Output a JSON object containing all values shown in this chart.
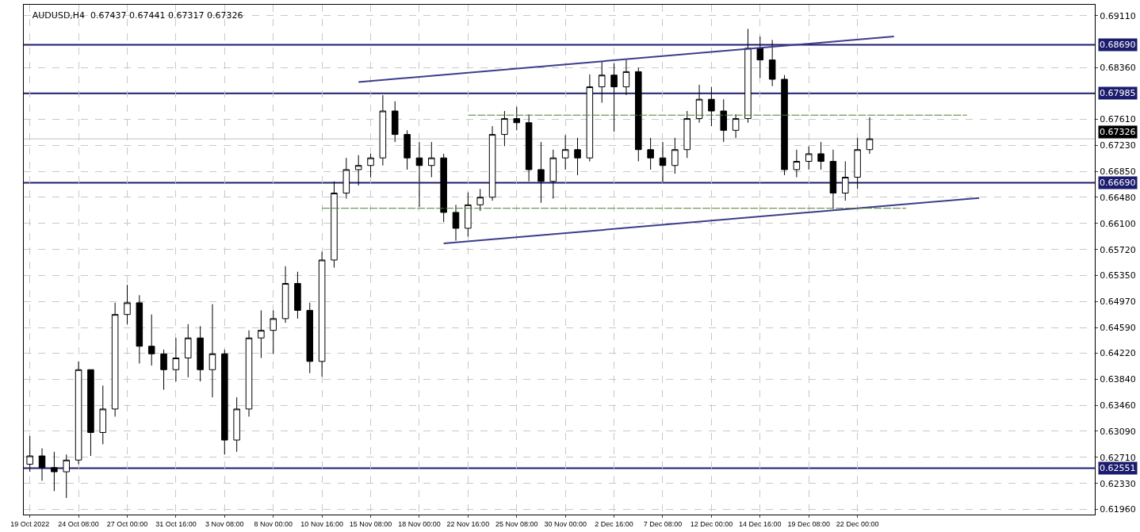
{
  "chart_data": {
    "type": "candlestick",
    "title": "AUDUSD,H4  0.67437 0.67441 0.67317 0.67326",
    "categories": [
      "19 Oct 2022",
      null,
      null,
      null,
      "24 Oct 08:00",
      null,
      null,
      null,
      "27 Oct 00:00",
      null,
      null,
      null,
      "31 Oct 16:00",
      null,
      null,
      null,
      "3 Nov 08:00",
      null,
      null,
      null,
      "8 Nov 00:00",
      null,
      null,
      null,
      "10 Nov 16:00",
      null,
      null,
      null,
      "15 Nov 08:00",
      null,
      null,
      null,
      "18 Nov 00:00",
      null,
      null,
      null,
      "22 Nov 16:00",
      null,
      null,
      null,
      "25 Nov 08:00",
      null,
      null,
      null,
      "30 Nov 00:00",
      null,
      null,
      null,
      "2 Dec 16:00",
      null,
      null,
      null,
      "7 Dec 08:00",
      null,
      null,
      null,
      "12 Dec 00:00",
      null,
      null,
      null,
      "14 Dec 16:00",
      null,
      null,
      null,
      "19 Dec 08:00",
      null,
      null,
      null,
      "22 Dec 00:00",
      null,
      null,
      null,
      null,
      null,
      null,
      null,
      null,
      null,
      null,
      null,
      null,
      null,
      null,
      null,
      null,
      null,
      null,
      null
    ],
    "color": "#000000",
    "ohlc": [
      [
        0.6261,
        0.6302,
        0.625,
        0.6273
      ],
      [
        0.6273,
        0.6284,
        0.6237,
        0.6256
      ],
      [
        0.6256,
        0.6279,
        0.6222,
        0.625
      ],
      [
        0.625,
        0.6275,
        0.6212,
        0.6267
      ],
      [
        0.6267,
        0.641,
        0.6261,
        0.6398
      ],
      [
        0.6398,
        0.6398,
        0.6273,
        0.6307
      ],
      [
        0.6307,
        0.6375,
        0.629,
        0.6341
      ],
      [
        0.6341,
        0.6495,
        0.633,
        0.6478
      ],
      [
        0.6478,
        0.6521,
        0.6464,
        0.6495
      ],
      [
        0.6495,
        0.6506,
        0.6407,
        0.6432
      ],
      [
        0.6432,
        0.6478,
        0.6404,
        0.6421
      ],
      [
        0.6421,
        0.6427,
        0.6369,
        0.6398
      ],
      [
        0.6398,
        0.6444,
        0.6381,
        0.6415
      ],
      [
        0.6415,
        0.6464,
        0.6387,
        0.6444
      ],
      [
        0.6444,
        0.6461,
        0.6381,
        0.6398
      ],
      [
        0.6398,
        0.6493,
        0.6358,
        0.6421
      ],
      [
        0.6421,
        0.6427,
        0.6275,
        0.6296
      ],
      [
        0.6296,
        0.6358,
        0.6279,
        0.6341
      ],
      [
        0.6341,
        0.6455,
        0.633,
        0.6444
      ],
      [
        0.6444,
        0.6484,
        0.6415,
        0.6455
      ],
      [
        0.6455,
        0.6484,
        0.6421,
        0.6472
      ],
      [
        0.6472,
        0.6548,
        0.6466,
        0.6523
      ],
      [
        0.6523,
        0.654,
        0.6472,
        0.6484
      ],
      [
        0.6484,
        0.6495,
        0.6393,
        0.641
      ],
      [
        0.641,
        0.6569,
        0.6388,
        0.6557
      ],
      [
        0.6557,
        0.6671,
        0.6546,
        0.6654
      ],
      [
        0.6654,
        0.6705,
        0.6646,
        0.6688
      ],
      [
        0.6688,
        0.6709,
        0.6665,
        0.6694
      ],
      [
        0.6694,
        0.6711,
        0.6677,
        0.6705
      ],
      [
        0.6705,
        0.6796,
        0.6694,
        0.6773
      ],
      [
        0.6773,
        0.6787,
        0.6728,
        0.6739
      ],
      [
        0.6739,
        0.6745,
        0.6688,
        0.6705
      ],
      [
        0.6705,
        0.6728,
        0.6634,
        0.6694
      ],
      [
        0.6694,
        0.6728,
        0.6677,
        0.6705
      ],
      [
        0.6705,
        0.6711,
        0.6612,
        0.6626
      ],
      [
        0.6626,
        0.6637,
        0.6585,
        0.6603
      ],
      [
        0.6603,
        0.6655,
        0.6591,
        0.6637
      ],
      [
        0.6637,
        0.666,
        0.6628,
        0.6648
      ],
      [
        0.6648,
        0.6751,
        0.6643,
        0.6739
      ],
      [
        0.6739,
        0.6773,
        0.6722,
        0.6762
      ],
      [
        0.6762,
        0.6779,
        0.6745,
        0.6756
      ],
      [
        0.6756,
        0.6768,
        0.6671,
        0.6688
      ],
      [
        0.6688,
        0.6728,
        0.664,
        0.6671
      ],
      [
        0.6671,
        0.6717,
        0.6646,
        0.6705
      ],
      [
        0.6705,
        0.6738,
        0.6688,
        0.6717
      ],
      [
        0.6717,
        0.6734,
        0.668,
        0.6705
      ],
      [
        0.6705,
        0.6826,
        0.67,
        0.6808
      ],
      [
        0.6808,
        0.6845,
        0.6785,
        0.6825
      ],
      [
        0.6825,
        0.6842,
        0.6743,
        0.6808
      ],
      [
        0.6808,
        0.6847,
        0.6796,
        0.683
      ],
      [
        0.683,
        0.6836,
        0.67,
        0.6717
      ],
      [
        0.6717,
        0.6734,
        0.6688,
        0.6705
      ],
      [
        0.6705,
        0.6728,
        0.667,
        0.6694
      ],
      [
        0.6694,
        0.6734,
        0.6682,
        0.6717
      ],
      [
        0.6717,
        0.6773,
        0.6705,
        0.6762
      ],
      [
        0.6762,
        0.6811,
        0.6756,
        0.679
      ],
      [
        0.679,
        0.6808,
        0.6751,
        0.6773
      ],
      [
        0.6773,
        0.679,
        0.6728,
        0.6745
      ],
      [
        0.6745,
        0.6768,
        0.6734,
        0.6762
      ],
      [
        0.6762,
        0.6892,
        0.6756,
        0.6864
      ],
      [
        0.6864,
        0.6881,
        0.6821,
        0.6847
      ],
      [
        0.6847,
        0.6876,
        0.6809,
        0.6819
      ],
      [
        0.6819,
        0.6825,
        0.668,
        0.6688
      ],
      [
        0.6688,
        0.6717,
        0.6677,
        0.67
      ],
      [
        0.67,
        0.6722,
        0.6688,
        0.6711
      ],
      [
        0.6711,
        0.6728,
        0.6688,
        0.67
      ],
      [
        0.67,
        0.6717,
        0.6631,
        0.6654
      ],
      [
        0.6654,
        0.67,
        0.6643,
        0.6677
      ],
      [
        0.6677,
        0.6734,
        0.666,
        0.6717
      ],
      [
        0.6717,
        0.6764,
        0.6711,
        0.67326
      ],
      null,
      null,
      null,
      null,
      null,
      null,
      null,
      null,
      null,
      null,
      null,
      null,
      null,
      null,
      null,
      null,
      null,
      null
    ],
    "series": [
      {
        "type": "line",
        "color": "#3c3c8c",
        "line_style": "solid",
        "values": [
          null,
          null,
          null,
          null,
          null,
          null,
          null,
          null,
          null,
          null,
          null,
          null,
          null,
          null,
          null,
          null,
          null,
          null,
          null,
          null,
          null,
          null,
          null,
          null,
          null,
          null,
          null,
          0.6815,
          null,
          null,
          null,
          null,
          null,
          null,
          null,
          null,
          null,
          null,
          null,
          null,
          null,
          null,
          null,
          null,
          null,
          null,
          null,
          null,
          null,
          null,
          null,
          null,
          null,
          null,
          null,
          null,
          null,
          null,
          null,
          null,
          null,
          null,
          null,
          null,
          null,
          null,
          null,
          null,
          null,
          null,
          null,
          0.6881,
          null,
          null,
          null,
          null,
          null,
          null,
          null,
          null,
          null,
          null,
          null,
          null,
          null,
          null,
          null,
          null
        ]
      },
      {
        "type": "line",
        "color": "#3c3c8c",
        "line_style": "solid",
        "values": [
          null,
          null,
          null,
          null,
          null,
          null,
          null,
          null,
          null,
          null,
          null,
          null,
          null,
          null,
          null,
          null,
          null,
          null,
          null,
          null,
          null,
          null,
          null,
          null,
          null,
          null,
          null,
          null,
          null,
          null,
          null,
          null,
          null,
          null,
          0.6581,
          null,
          null,
          null,
          null,
          null,
          null,
          null,
          null,
          null,
          null,
          null,
          null,
          null,
          null,
          null,
          null,
          null,
          null,
          null,
          null,
          null,
          null,
          null,
          null,
          null,
          null,
          null,
          null,
          null,
          null,
          null,
          null,
          null,
          null,
          null,
          null,
          null,
          null,
          null,
          null,
          null,
          null,
          null,
          0.6647,
          null,
          null,
          null,
          null,
          null,
          null,
          null,
          null,
          null
        ]
      },
      {
        "type": "line",
        "color": "#4f7f2f",
        "line_style": "dashed",
        "values": [
          null,
          null,
          null,
          null,
          null,
          null,
          null,
          null,
          null,
          null,
          null,
          null,
          null,
          null,
          null,
          null,
          null,
          null,
          null,
          null,
          null,
          null,
          null,
          null,
          null,
          null,
          null,
          null,
          null,
          null,
          null,
          null,
          null,
          null,
          null,
          null,
          0.6767,
          null,
          null,
          null,
          null,
          null,
          null,
          null,
          null,
          null,
          null,
          null,
          null,
          null,
          null,
          null,
          null,
          null,
          null,
          null,
          null,
          null,
          null,
          null,
          null,
          null,
          null,
          null,
          null,
          null,
          null,
          null,
          null,
          null,
          null,
          null,
          null,
          null,
          null,
          null,
          null,
          0.6767,
          null,
          null,
          null,
          null,
          null,
          null,
          null,
          null,
          null,
          null
        ]
      },
      {
        "type": "line",
        "color": "#4f7f2f",
        "line_style": "dashed",
        "values": [
          null,
          null,
          null,
          null,
          null,
          null,
          null,
          null,
          null,
          null,
          null,
          null,
          null,
          null,
          null,
          null,
          null,
          null,
          null,
          null,
          null,
          null,
          null,
          null,
          0.6632,
          null,
          null,
          null,
          null,
          null,
          null,
          null,
          null,
          null,
          null,
          null,
          null,
          null,
          null,
          null,
          null,
          null,
          null,
          null,
          null,
          null,
          null,
          null,
          null,
          null,
          null,
          null,
          null,
          null,
          null,
          null,
          null,
          null,
          null,
          null,
          null,
          null,
          null,
          null,
          null,
          null,
          null,
          null,
          null,
          null,
          null,
          null,
          0.6632,
          null,
          null,
          null,
          null,
          null,
          null,
          null,
          null,
          null,
          null,
          null,
          null,
          null,
          null,
          null
        ]
      }
    ],
    "ref_lines": [
      {
        "axis": "y",
        "value": 0.6869,
        "label": "0.68690",
        "color": "#1c1c6e"
      },
      {
        "axis": "y",
        "value": 0.67985,
        "label": "0.67985",
        "color": "#1c1c6e"
      },
      {
        "axis": "y",
        "value": 0.6669,
        "label": "0.66690",
        "color": "#1c1c6e"
      },
      {
        "axis": "y",
        "value": 0.62551,
        "label": "0.62551",
        "color": "#1c1c6e"
      },
      {
        "axis": "y",
        "value": 0.67326,
        "label": "0.67326",
        "color": "#c0c0c0"
      }
    ],
    "ylim": [
      0.6188,
      0.6927
    ],
    "yticks": [
      {
        "value": 0.6911,
        "label": "0.69110"
      },
      {
        "value": 0.6836,
        "label": "0.68360"
      },
      {
        "value": 0.6761,
        "label": "0.67610"
      },
      {
        "value": 0.6723,
        "label": "0.67230"
      },
      {
        "value": 0.6685,
        "label": "0.66850"
      },
      {
        "value": 0.6648,
        "label": "0.66480"
      },
      {
        "value": 0.661,
        "label": "0.66100"
      },
      {
        "value": 0.6572,
        "label": "0.65720"
      },
      {
        "value": 0.6535,
        "label": "0.65350"
      },
      {
        "value": 0.6497,
        "label": "0.64970"
      },
      {
        "value": 0.6459,
        "label": "0.64590"
      },
      {
        "value": 0.6422,
        "label": "0.64220"
      },
      {
        "value": 0.6384,
        "label": "0.63840"
      },
      {
        "value": 0.6346,
        "label": "0.63460"
      },
      {
        "value": 0.6309,
        "label": "0.63090"
      },
      {
        "value": 0.6271,
        "label": "0.62710"
      },
      {
        "value": 0.6233,
        "label": "0.62330"
      },
      {
        "value": 0.6196,
        "label": "0.61960"
      }
    ],
    "grid": true
  }
}
